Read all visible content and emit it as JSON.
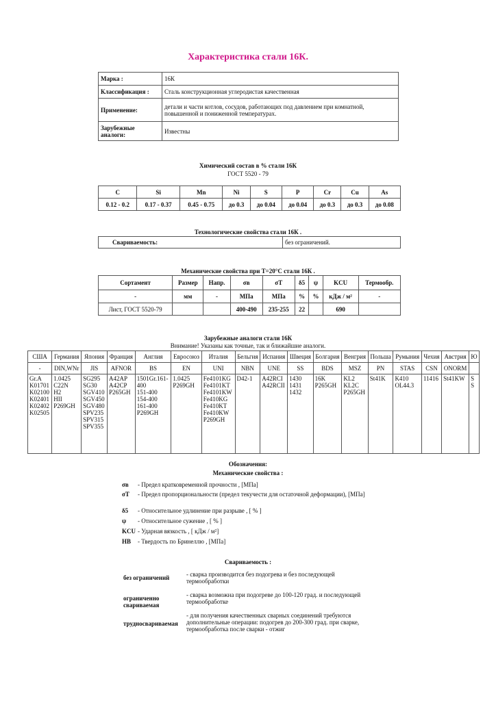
{
  "title": "Характеристика стали 16К.",
  "info": [
    {
      "label": "Марка :",
      "value": "16К"
    },
    {
      "label": "Классификация :",
      "value": "Сталь конструкционная углеродистая качественная"
    },
    {
      "label": "Применение:",
      "value": "детали и части котлов, сосудов, работающих под давлением при комнатной, повышенной и пониженной температурах."
    },
    {
      "label": "Зарубежные аналоги:",
      "value": "Известны"
    }
  ],
  "chem": {
    "title": "Химический состав в % стали   16К",
    "subtitle": "ГОСТ   5520 - 79",
    "headers": [
      "C",
      "Si",
      "Mn",
      "Ni",
      "S",
      "P",
      "Cr",
      "Cu",
      "As"
    ],
    "values": [
      "0.12 - 0.2",
      "0.17 - 0.37",
      "0.45 - 0.75",
      "до   0.3",
      "до   0.04",
      "до   0.04",
      "до   0.3",
      "до   0.3",
      "до   0.08"
    ]
  },
  "tech": {
    "title": "Технологические свойства стали 16К .",
    "label": "Свариваемость:",
    "value": "без ограничений."
  },
  "mech": {
    "title": "Механические свойства при T=20°C стали 16К .",
    "headers": [
      "Сортамент",
      "Размер",
      "Напр.",
      "σв",
      "σT",
      "δ5",
      "ψ",
      "KCU",
      "Термообр."
    ],
    "units": [
      "-",
      "мм",
      "-",
      "МПа",
      "МПа",
      "%",
      "%",
      "кДж / м²",
      "-"
    ],
    "row": [
      "Лист, ГОСТ 5520-79",
      "",
      "",
      "400-490",
      "235-255",
      "22",
      "",
      "690",
      ""
    ]
  },
  "analogs": {
    "title": "Зарубежные аналоги стали 16К",
    "note": "Внимание!   Указаны как точные, так и ближайшие аналоги.",
    "countries": [
      "США",
      "Германия",
      "Япония",
      "Франция",
      "Англия",
      "Евросоюз",
      "Италия",
      "Бельгия",
      "Испания",
      "Швеция",
      "Болгария",
      "Венгрия",
      "Польша",
      "Румыния",
      "Чехия",
      "Австрия",
      "Ю"
    ],
    "standards": [
      "-",
      "DIN,WNr",
      "JIS",
      "AFNOR",
      "BS",
      "EN",
      "UNI",
      "NBN",
      "UNE",
      "SS",
      "BDS",
      "MSZ",
      "PN",
      "STAS",
      "CSN",
      "ONORM",
      ""
    ],
    "grades": [
      "Gr.A\nK01701\nK02100\nK02401\nK02402\nK02505",
      "1.0425\nC22N\nH2\nHII\nP269GH",
      "SG295\nSG30\nSGV410\nSGV450\nSGV480\nSPV235\nSPV315\nSPV355",
      "A42AP\nA42CP\nP265GH",
      "1501Gr.161-\n400\n151-400\n154-400\n161-400\nP269GH",
      "1.0425\nP269GH",
      "Fe4101KG\nFe4101KT\nFe4101KW\nFe410KG\nFe410KT\nFe410KW\nP269GH",
      "D42-1",
      "A42RCI\nA42RCII",
      "1430\n1431\n1432",
      "16K\nP265GH",
      "KL2\nKL2C\nP265GH",
      "St41K",
      "K410\nOL44.3",
      "11416",
      "St41KW",
      "S\nS"
    ]
  },
  "legend": {
    "title": "Обозначения:",
    "mech_title": "Механические свойства :",
    "mech": [
      {
        "sym": "σв",
        "text": "- Предел кратковременной прочности , [МПа]"
      },
      {
        "sym": "σT",
        "text": "- Предел пропорциональности (предел текучести для остаточной деформации), [МПа]"
      },
      {
        "sym": "δ5",
        "text": "- Относительное удлинение при разрыве , [ % ]"
      },
      {
        "sym": "ψ",
        "text": "- Относительное сужение , [ % ]"
      },
      {
        "sym": "KCU",
        "text": "- Ударная вязкость , [ кДж / м²]"
      },
      {
        "sym": "HB",
        "text": "- Твердость по Бринеллю , [МПа]"
      }
    ],
    "weld_title": "Свариваемость :",
    "weld": [
      {
        "term": "без ограничений",
        "text": "- сварка производится без подогрева и без последующей термообработки"
      },
      {
        "term": "ограниченно свариваемая",
        "text": "- сварка возможна при подогреве до 100-120 град. и последующей термообработке"
      },
      {
        "term": "трудносвариваемая",
        "text": "- для получения качественных сварных соединений требуются дополнительные операции: подогрев до 200-300 град. при сварке, термообработка после сварки - отжиг"
      }
    ]
  }
}
